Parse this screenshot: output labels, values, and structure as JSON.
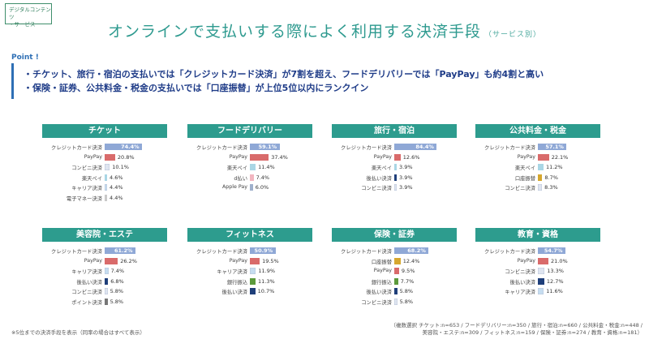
{
  "tag": {
    "line1": "デジタルコンテンツ",
    "line2": "・サービス"
  },
  "title": {
    "main": "オンラインで支払いする際によく利用する決済手段",
    "sub": "（サービス別）"
  },
  "point": {
    "label": "Point !",
    "line1": "・チケット、旅行・宿泊の支払いでは「クレジットカード決済」が7割を超え、フードデリバリーでは「PayPay」も約4割と高い",
    "line2": "・保険・証券、公共料金・税金の支払いでは「口座振替」が上位5位以内にランクイン"
  },
  "footnote_left": "※5位までの決済手段を表示（同率の場合はすべて表示）",
  "footnote_right": {
    "line1": "（複数選択 チケット:n=653 / フードデリバリー:n=350 / 旅行・宿泊:n=660 / 公共料金・税金:n=448 /",
    "line2": "美容院・エステ:n=309 / フィットネス:n=159 / 保険・証券:n=274 / 教育・資格:n=181）"
  },
  "colors": {
    "header": "#2d9c8e",
    "credit": "#8fa8d6",
    "paypay": "#d96b6b",
    "convenience": "#dfe5f0",
    "rakuten": "#a9d6e5",
    "career": "#c6ddf0",
    "emoney": "#c9c9c9",
    "dbarai": "#f2b6c0",
    "applepay": "#9fb0cc",
    "deferred": "#1f3f7a",
    "account": "#d6a72e",
    "bank": "#5c9a3c",
    "point": "#777777"
  },
  "chart_data": [
    {
      "type": "bar",
      "title": "チケット",
      "categories": [
        "クレジットカード決済",
        "PayPay",
        "コンビニ決済",
        "楽天ペイ",
        "キャリア決済",
        "電子マネー決済"
      ],
      "values": [
        74.4,
        20.8,
        10.1,
        4.6,
        4.4,
        4.4
      ],
      "labels": [
        "74.4%",
        "20.8%",
        "10.1%",
        "4.6%",
        "4.4%",
        "4.4%"
      ],
      "colors": [
        "credit",
        "paypay",
        "convenience",
        "rakuten",
        "career",
        "emoney"
      ]
    },
    {
      "type": "bar",
      "title": "フードデリバリー",
      "categories": [
        "クレジットカード決済",
        "PayPay",
        "楽天ペイ",
        "d払い",
        "Apple Pay"
      ],
      "values": [
        59.1,
        37.4,
        11.4,
        7.4,
        6.0
      ],
      "labels": [
        "59.1%",
        "37.4%",
        "11.4%",
        "7.4%",
        "6.0%"
      ],
      "colors": [
        "credit",
        "paypay",
        "rakuten",
        "dbarai",
        "applepay"
      ]
    },
    {
      "type": "bar",
      "title": "旅行・宿泊",
      "categories": [
        "クレジットカード決済",
        "PayPay",
        "楽天ペイ",
        "後払い決済",
        "コンビニ決済"
      ],
      "values": [
        84.4,
        12.6,
        3.9,
        3.9,
        3.9
      ],
      "labels": [
        "84.4%",
        "12.6%",
        "3.9%",
        "3.9%",
        "3.9%"
      ],
      "colors": [
        "credit",
        "paypay",
        "rakuten",
        "deferred",
        "convenience"
      ]
    },
    {
      "type": "bar",
      "title": "公共料金・税金",
      "categories": [
        "クレジットカード決済",
        "PayPay",
        "楽天ペイ",
        "口座振替",
        "コンビニ決済"
      ],
      "values": [
        57.1,
        22.1,
        11.2,
        8.7,
        8.3
      ],
      "labels": [
        "57.1%",
        "22.1%",
        "11.2%",
        "8.7%",
        "8.3%"
      ],
      "colors": [
        "credit",
        "paypay",
        "rakuten",
        "account",
        "convenience"
      ]
    },
    {
      "type": "bar",
      "title": "美容院・エステ",
      "categories": [
        "クレジットカード決済",
        "PayPay",
        "キャリア決済",
        "後払い決済",
        "コンビニ決済",
        "ポイント決済"
      ],
      "values": [
        61.2,
        26.2,
        7.4,
        6.8,
        5.8,
        5.8
      ],
      "labels": [
        "61.2%",
        "26.2%",
        "7.4%",
        "6.8%",
        "5.8%",
        "5.8%"
      ],
      "colors": [
        "credit",
        "paypay",
        "career",
        "deferred",
        "convenience",
        "point"
      ]
    },
    {
      "type": "bar",
      "title": "フィットネス",
      "categories": [
        "クレジットカード決済",
        "PayPay",
        "キャリア決済",
        "銀行振込",
        "後払い決済"
      ],
      "values": [
        50.9,
        19.5,
        11.9,
        11.3,
        10.7
      ],
      "labels": [
        "50.9%",
        "19.5%",
        "11.9%",
        "11.3%",
        "10.7%"
      ],
      "colors": [
        "credit",
        "paypay",
        "career",
        "bank",
        "deferred"
      ]
    },
    {
      "type": "bar",
      "title": "保険・証券",
      "categories": [
        "クレジットカード決済",
        "口座振替",
        "PayPay",
        "銀行振込",
        "後払い決済",
        "コンビニ決済"
      ],
      "values": [
        68.2,
        12.4,
        9.5,
        7.7,
        5.8,
        5.8
      ],
      "labels": [
        "68.2%",
        "12.4%",
        "9.5%",
        "7.7%",
        "5.8%",
        "5.8%"
      ],
      "colors": [
        "credit",
        "account",
        "paypay",
        "bank",
        "deferred",
        "convenience"
      ]
    },
    {
      "type": "bar",
      "title": "教育・資格",
      "categories": [
        "クレジットカード決済",
        "PayPay",
        "コンビニ決済",
        "後払い決済",
        "キャリア決済"
      ],
      "values": [
        54.7,
        21.0,
        13.3,
        12.7,
        11.6
      ],
      "labels": [
        "54.7%",
        "21.0%",
        "13.3%",
        "12.7%",
        "11.6%"
      ],
      "colors": [
        "credit",
        "paypay",
        "convenience",
        "deferred",
        "career"
      ]
    }
  ]
}
